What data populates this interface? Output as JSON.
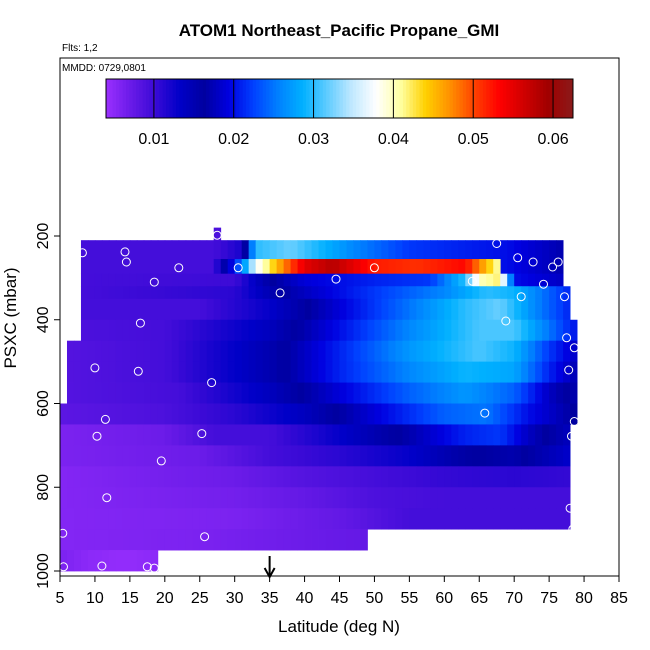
{
  "chart_data": {
    "type": "heatmap",
    "title": "ATOM1 Northeast_Pacific Propane_GMI",
    "flights_label": "Flts: 1,2",
    "date_label": "MMDD: 0729,0801",
    "xlabel": "Latitude (deg N)",
    "ylabel": "PSXC (mbar)",
    "xlim": [
      5,
      85
    ],
    "ylim": [
      1000,
      0
    ],
    "x_ticks": [
      "5",
      "10",
      "15",
      "20",
      "25",
      "30",
      "35",
      "40",
      "45",
      "50",
      "55",
      "60",
      "65",
      "70",
      "75",
      "80",
      "85"
    ],
    "y_ticks": [
      "200",
      "400",
      "600",
      "800",
      "1000"
    ],
    "colorbar": {
      "range": [
        0.004,
        0.0625
      ],
      "ticks": [
        "0.01",
        "0.02",
        "0.03",
        "0.04",
        "0.05",
        "0.06"
      ],
      "colors": [
        "#9b30ff",
        "#6a1be8",
        "#3a0ad6",
        "#0000c8",
        "#0000a0",
        "#0000e0",
        "#0040ff",
        "#0080ff",
        "#00b0ff",
        "#60ccff",
        "#c0e8ff",
        "#ffffff",
        "#ffffa0",
        "#ffd000",
        "#ff9000",
        "#ff4000",
        "#ff0000",
        "#d00000",
        "#a00000",
        "#8b1a1a"
      ]
    },
    "marker_latitude": 35,
    "rows": [
      {
        "p0": 210,
        "p1": 290,
        "x0": 8,
        "x1": 77,
        "base": 0.0095,
        "anchors": [
          [
            8,
            0.0095
          ],
          [
            27,
            0.0095
          ],
          [
            31,
            0.012
          ],
          [
            33,
            0.03
          ],
          [
            38,
            0.032
          ],
          [
            47,
            0.026
          ],
          [
            55,
            0.022
          ],
          [
            62,
            0.021
          ],
          [
            69,
            0.02
          ],
          [
            77,
            0.017
          ]
        ]
      },
      {
        "p0": 255,
        "p1": 290,
        "x0": 27,
        "x1": 68,
        "base": 0.0095,
        "anchors": [
          [
            27,
            0.0095
          ],
          [
            31,
            0.025
          ],
          [
            33,
            0.037
          ],
          [
            36,
            0.045
          ],
          [
            40,
            0.055
          ],
          [
            44,
            0.058
          ],
          [
            50,
            0.052
          ],
          [
            56,
            0.051
          ],
          [
            63,
            0.053
          ],
          [
            66,
            0.045
          ],
          [
            68,
            0.04
          ]
        ]
      },
      {
        "p0": 290,
        "p1": 320,
        "x0": 8,
        "x1": 77,
        "base": 0.0095,
        "anchors": [
          [
            8,
            0.0095
          ],
          [
            30,
            0.01
          ],
          [
            35,
            0.016
          ],
          [
            40,
            0.019
          ],
          [
            50,
            0.021
          ],
          [
            58,
            0.022
          ],
          [
            63,
            0.03
          ],
          [
            65,
            0.04
          ],
          [
            68,
            0.042
          ],
          [
            70,
            0.02
          ],
          [
            77,
            0.018
          ]
        ]
      },
      {
        "p0": 320,
        "p1": 350,
        "x0": 8,
        "x1": 78,
        "base": 0.0095,
        "anchors": [
          [
            8,
            0.0095
          ],
          [
            30,
            0.011
          ],
          [
            38,
            0.017
          ],
          [
            50,
            0.022
          ],
          [
            60,
            0.026
          ],
          [
            66,
            0.03
          ],
          [
            70,
            0.029
          ],
          [
            74,
            0.025
          ],
          [
            78,
            0.021
          ]
        ]
      },
      {
        "p0": 350,
        "p1": 400,
        "x0": 8,
        "x1": 78,
        "base": 0.0095,
        "anchors": [
          [
            8,
            0.0095
          ],
          [
            25,
            0.0095
          ],
          [
            35,
            0.013
          ],
          [
            45,
            0.019
          ],
          [
            55,
            0.025
          ],
          [
            63,
            0.03
          ],
          [
            68,
            0.032
          ],
          [
            73,
            0.026
          ],
          [
            78,
            0.021
          ]
        ]
      },
      {
        "p0": 400,
        "p1": 450,
        "x0": 8,
        "x1": 79,
        "base": 0.009,
        "anchors": [
          [
            8,
            0.009
          ],
          [
            20,
            0.0095
          ],
          [
            35,
            0.014
          ],
          [
            45,
            0.02
          ],
          [
            55,
            0.026
          ],
          [
            65,
            0.031
          ],
          [
            70,
            0.031
          ],
          [
            75,
            0.025
          ],
          [
            79,
            0.02
          ]
        ]
      },
      {
        "p0": 450,
        "p1": 500,
        "x0": 6,
        "x1": 79,
        "base": 0.0085,
        "anchors": [
          [
            6,
            0.0085
          ],
          [
            20,
            0.0095
          ],
          [
            35,
            0.015
          ],
          [
            45,
            0.021
          ],
          [
            55,
            0.027
          ],
          [
            65,
            0.031
          ],
          [
            70,
            0.029
          ],
          [
            75,
            0.022
          ],
          [
            79,
            0.018
          ]
        ]
      },
      {
        "p0": 500,
        "p1": 550,
        "x0": 6,
        "x1": 79,
        "base": 0.0085,
        "anchors": [
          [
            6,
            0.0085
          ],
          [
            20,
            0.0095
          ],
          [
            35,
            0.015
          ],
          [
            45,
            0.021
          ],
          [
            55,
            0.026
          ],
          [
            63,
            0.029
          ],
          [
            70,
            0.028
          ],
          [
            75,
            0.021
          ],
          [
            79,
            0.017
          ]
        ]
      },
      {
        "p0": 550,
        "p1": 600,
        "x0": 6,
        "x1": 79,
        "base": 0.0085,
        "anchors": [
          [
            6,
            0.0085
          ],
          [
            22,
            0.0095
          ],
          [
            35,
            0.014
          ],
          [
            45,
            0.019
          ],
          [
            55,
            0.024
          ],
          [
            63,
            0.027
          ],
          [
            70,
            0.024
          ],
          [
            75,
            0.018
          ],
          [
            79,
            0.015
          ]
        ]
      },
      {
        "p0": 600,
        "p1": 650,
        "x0": 5,
        "x1": 79,
        "base": 0.008,
        "anchors": [
          [
            5,
            0.008
          ],
          [
            20,
            0.009
          ],
          [
            30,
            0.011
          ],
          [
            40,
            0.014
          ],
          [
            50,
            0.019
          ],
          [
            60,
            0.024
          ],
          [
            66,
            0.025
          ],
          [
            72,
            0.02
          ],
          [
            79,
            0.016
          ]
        ]
      },
      {
        "p0": 650,
        "p1": 700,
        "x0": 5,
        "x1": 78,
        "base": 0.006,
        "anchors": [
          [
            5,
            0.006
          ],
          [
            20,
            0.007
          ],
          [
            27,
            0.0095
          ],
          [
            35,
            0.0095
          ],
          [
            45,
            0.013
          ],
          [
            55,
            0.017
          ],
          [
            63,
            0.021
          ],
          [
            68,
            0.022
          ],
          [
            72,
            0.018
          ],
          [
            78,
            0.014
          ]
        ]
      },
      {
        "p0": 700,
        "p1": 750,
        "x0": 5,
        "x1": 78,
        "base": 0.006,
        "anchors": [
          [
            5,
            0.006
          ],
          [
            25,
            0.007
          ],
          [
            35,
            0.0095
          ],
          [
            45,
            0.011
          ],
          [
            55,
            0.013
          ],
          [
            63,
            0.016
          ],
          [
            70,
            0.017
          ],
          [
            78,
            0.013
          ]
        ]
      },
      {
        "p0": 750,
        "p1": 800,
        "x0": 5,
        "x1": 78,
        "base": 0.0055,
        "anchors": [
          [
            5,
            0.0055
          ],
          [
            30,
            0.007
          ],
          [
            40,
            0.0085
          ],
          [
            50,
            0.0095
          ],
          [
            60,
            0.0105
          ],
          [
            70,
            0.011
          ],
          [
            78,
            0.0105
          ]
        ]
      },
      {
        "p0": 800,
        "p1": 850,
        "x0": 5,
        "x1": 78,
        "base": 0.0055,
        "anchors": [
          [
            5,
            0.0055
          ],
          [
            30,
            0.0065
          ],
          [
            40,
            0.0075
          ],
          [
            50,
            0.009
          ],
          [
            60,
            0.0095
          ],
          [
            78,
            0.0095
          ]
        ]
      },
      {
        "p0": 850,
        "p1": 900,
        "x0": 5,
        "x1": 78,
        "base": 0.0055,
        "anchors": [
          [
            5,
            0.0055
          ],
          [
            30,
            0.006
          ],
          [
            45,
            0.0075
          ],
          [
            55,
            0.0095
          ],
          [
            78,
            0.0095
          ]
        ]
      },
      {
        "p0": 900,
        "p1": 950,
        "x0": 5,
        "x1": 49,
        "base": 0.0055,
        "anchors": [
          [
            5,
            0.0055
          ],
          [
            25,
            0.006
          ],
          [
            40,
            0.007
          ],
          [
            49,
            0.0075
          ]
        ]
      },
      {
        "p0": 950,
        "p1": 1000,
        "x0": 5,
        "x1": 19,
        "base": 0.0055,
        "anchors": [
          [
            5,
            0.006
          ],
          [
            9,
            0.005
          ],
          [
            14,
            0.0045
          ],
          [
            19,
            0.005
          ]
        ]
      },
      {
        "p0": 180,
        "p1": 210,
        "x0": 27,
        "x1": 28,
        "base": 0.009,
        "anchors": [
          [
            27,
            0.009
          ],
          [
            28,
            0.009
          ]
        ]
      }
    ],
    "points": [
      [
        8.2,
        240
      ],
      [
        14.3,
        238
      ],
      [
        14.5,
        262
      ],
      [
        18.5,
        310
      ],
      [
        22.0,
        276
      ],
      [
        27.5,
        198
      ],
      [
        30.5,
        276
      ],
      [
        36.5,
        336
      ],
      [
        44.5,
        303
      ],
      [
        50.0,
        276
      ],
      [
        64.0,
        308
      ],
      [
        67.5,
        218
      ],
      [
        70.5,
        252
      ],
      [
        72.7,
        262
      ],
      [
        74.2,
        315
      ],
      [
        75.5,
        274
      ],
      [
        76.3,
        262
      ],
      [
        71.0,
        345
      ],
      [
        77.2,
        345
      ],
      [
        16.5,
        408
      ],
      [
        68.8,
        403
      ],
      [
        77.5,
        443
      ],
      [
        78.6,
        467
      ],
      [
        10.0,
        515
      ],
      [
        16.2,
        523
      ],
      [
        26.7,
        550
      ],
      [
        77.8,
        520
      ],
      [
        5.3,
        567
      ],
      [
        65.8,
        623
      ],
      [
        11.5,
        638
      ],
      [
        78.6,
        643
      ],
      [
        10.3,
        678
      ],
      [
        25.3,
        672
      ],
      [
        78.2,
        678
      ],
      [
        19.5,
        737
      ],
      [
        11.7,
        825
      ],
      [
        78.0,
        850
      ],
      [
        78.4,
        900
      ],
      [
        5.4,
        910
      ],
      [
        25.7,
        918
      ],
      [
        5.5,
        990
      ],
      [
        11.0,
        988
      ],
      [
        17.5,
        990
      ],
      [
        18.5,
        993
      ]
    ]
  }
}
